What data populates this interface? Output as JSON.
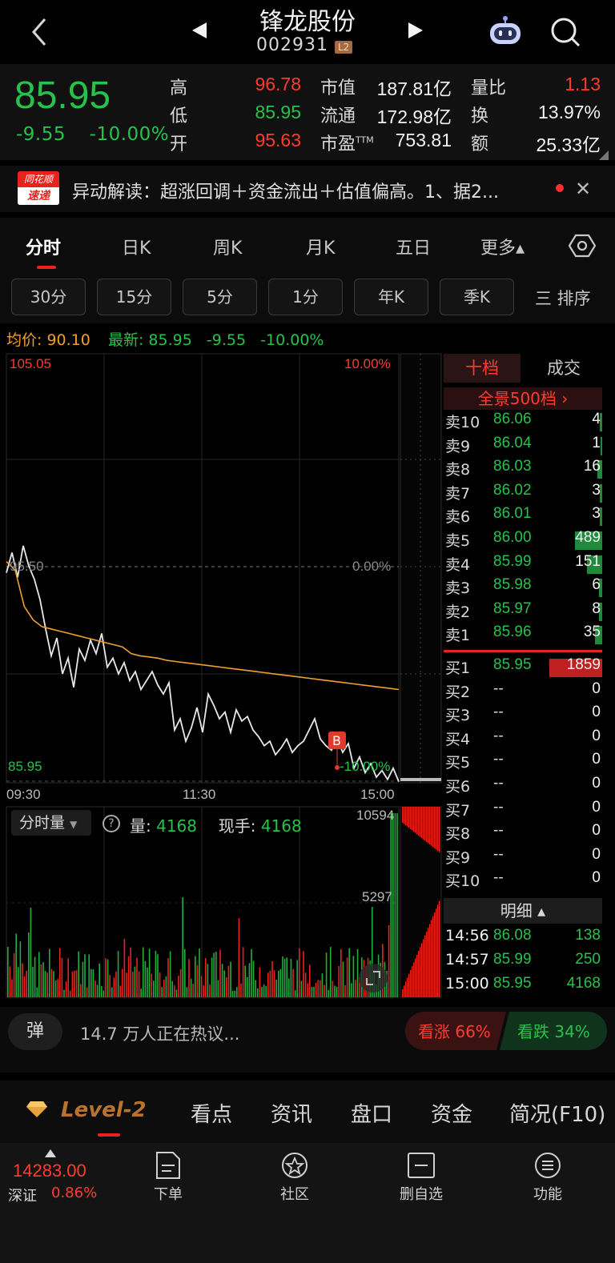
{
  "header": {
    "title": "锋龙股份",
    "code": "002931",
    "level_badge": "L2"
  },
  "quote": {
    "price": "85.95",
    "change": "-9.55",
    "change_pct": "-10.00%",
    "high_label": "高",
    "high": "96.78",
    "low_label": "低",
    "low": "85.95",
    "open_label": "开",
    "open": "95.63",
    "mktcap_label": "市值",
    "mktcap": "187.81亿",
    "float_label": "流通",
    "float": "172.98亿",
    "pe_label": "市盈",
    "pe_sup": "TTM",
    "pe": "753.81",
    "volratio_label": "量比",
    "volratio": "1.13",
    "turnover_label": "换",
    "turnover": "13.97%",
    "amount_label": "额",
    "amount": "25.33亿"
  },
  "news": {
    "logo_top": "同花顺",
    "logo_bottom": "速递",
    "text": "异动解读：超涨回调＋资金流出＋估值偏高。1、据2..."
  },
  "tabs": [
    "分时",
    "日K",
    "周K",
    "月K",
    "五日",
    "更多▴"
  ],
  "periods": [
    "30分",
    "15分",
    "5分",
    "1分",
    "年K",
    "季K"
  ],
  "sort_label": "三 排序",
  "avgbar": {
    "avg_label": "均价:",
    "avg": "90.10",
    "latest_label": "最新:",
    "latest": "85.95",
    "chg": "-9.55",
    "pct": "-10.00%"
  },
  "chart_data": {
    "type": "line",
    "y_top": "105.05",
    "y_mid": "95.50",
    "y_bottom": "85.95",
    "pct_top": "10.00%",
    "pct_mid": "0.00%",
    "pct_bottom": "-10.00%",
    "x_ticks": [
      "09:30",
      "11:30",
      "15:00"
    ],
    "ylim": [
      85.95,
      105.05
    ],
    "buy_marker": "B",
    "series": [
      {
        "values": [
          95.3,
          96.2,
          95.1,
          96.5,
          95.6,
          95.0,
          94.1,
          92.8,
          91.6,
          92.4,
          90.8,
          91.5,
          90.2,
          91.9,
          91.4,
          92.3,
          91.7,
          92.6,
          91.1,
          91.5,
          90.8,
          91.3,
          90.5,
          90.9,
          90.1,
          90.5,
          90.9,
          90.3,
          89.9,
          90.4,
          88.3,
          88.8,
          87.8,
          88.4,
          89.3,
          88.2,
          89.9,
          89.4,
          88.8,
          89.1,
          88.2,
          89.2,
          88.7,
          88.9,
          88.3,
          88.0,
          87.6,
          87.8,
          87.2,
          87.5,
          87.9,
          87.3,
          87.6,
          87.8,
          88.3,
          88.8,
          87.9,
          87.6,
          87.4,
          87.9,
          87.3,
          87.7,
          86.6,
          87.1,
          86.4,
          86.8,
          86.2,
          86.5,
          86.1,
          86.6,
          86.0
        ]
      },
      {
        "values": [
          95.8,
          95.4,
          93.8,
          93.2,
          92.9,
          92.8,
          92.7,
          92.6,
          92.5,
          92.4,
          92.3,
          92.2,
          92.1,
          92.0,
          91.7,
          91.6,
          91.55,
          91.5,
          91.4,
          91.35,
          91.3,
          91.25,
          91.2,
          91.15,
          91.1,
          91.05,
          91.0,
          90.95,
          90.9,
          90.85,
          90.8,
          90.75,
          90.7,
          90.65,
          90.6,
          90.55,
          90.5,
          90.45,
          90.4,
          90.35,
          90.3,
          90.25,
          90.2,
          90.15,
          90.1
        ]
      }
    ],
    "volume": {
      "label": "分时量",
      "qty_label": "量:",
      "qty": "4168",
      "hand_label": "现手:",
      "hand": "4168",
      "max": "10594",
      "mid": "5297"
    }
  },
  "orderbook": {
    "tab1": "十档",
    "tab2": "成交",
    "panorama": "全景500档 ›",
    "sell": [
      {
        "label": "卖10",
        "price": "86.06",
        "vol": "4"
      },
      {
        "label": "卖9",
        "price": "86.04",
        "vol": "1"
      },
      {
        "label": "卖8",
        "price": "86.03",
        "vol": "16"
      },
      {
        "label": "卖7",
        "price": "86.02",
        "vol": "3"
      },
      {
        "label": "卖6",
        "price": "86.01",
        "vol": "3"
      },
      {
        "label": "卖5",
        "price": "86.00",
        "vol": "489"
      },
      {
        "label": "卖4",
        "price": "85.99",
        "vol": "151"
      },
      {
        "label": "卖3",
        "price": "85.98",
        "vol": "6"
      },
      {
        "label": "卖2",
        "price": "85.97",
        "vol": "8"
      },
      {
        "label": "卖1",
        "price": "85.96",
        "vol": "35"
      }
    ],
    "buy": [
      {
        "label": "买1",
        "price": "85.95",
        "vol": "1859"
      },
      {
        "label": "买2",
        "price": "--",
        "vol": "0"
      },
      {
        "label": "买3",
        "price": "--",
        "vol": "0"
      },
      {
        "label": "买4",
        "price": "--",
        "vol": "0"
      },
      {
        "label": "买5",
        "price": "--",
        "vol": "0"
      },
      {
        "label": "买6",
        "price": "--",
        "vol": "0"
      },
      {
        "label": "买7",
        "price": "--",
        "vol": "0"
      },
      {
        "label": "买8",
        "price": "--",
        "vol": "0"
      },
      {
        "label": "买9",
        "price": "--",
        "vol": "0"
      },
      {
        "label": "买10",
        "price": "--",
        "vol": "0"
      }
    ],
    "detail_label": "明细 ▴",
    "details": [
      {
        "time": "14:56",
        "price": "86.08",
        "vol": "138"
      },
      {
        "time": "14:57",
        "price": "85.99",
        "vol": "250"
      },
      {
        "time": "15:00",
        "price": "85.95",
        "vol": "4168"
      }
    ]
  },
  "hot": {
    "dan": "弹",
    "text": "14.7 万人正在热议...",
    "up": "看涨 66%",
    "down": "看跌 34%"
  },
  "subnav": [
    "Level-2",
    "看点",
    "资讯",
    "盘口",
    "资金",
    "简况(F10)"
  ],
  "bottom": {
    "index_value": "14283.00",
    "index_name": "深证",
    "index_pct": "0.86%",
    "items": [
      "下单",
      "社区",
      "删自选",
      "功能"
    ]
  },
  "colors": {
    "up": "#ff3b30",
    "down": "#27c24c",
    "avg_line": "#f0a030",
    "accent": "#e8231e"
  }
}
